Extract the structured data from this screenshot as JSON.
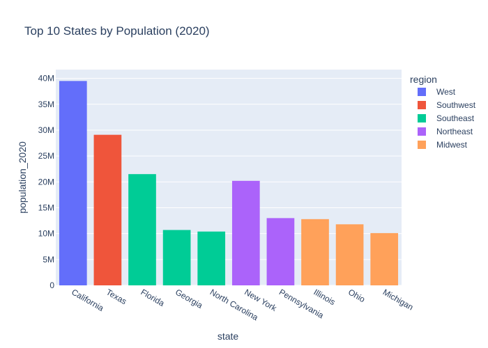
{
  "chart_data": {
    "type": "bar",
    "title": "Top 10 States by Population (2020)",
    "xlabel": "state",
    "ylabel": "population_2020",
    "ylim": [
      0,
      41700000
    ],
    "yticks": [
      0,
      5000000,
      10000000,
      15000000,
      20000000,
      25000000,
      30000000,
      35000000,
      40000000
    ],
    "ytick_labels": [
      "0",
      "5M",
      "10M",
      "15M",
      "20M",
      "25M",
      "30M",
      "35M",
      "40M"
    ],
    "grid": true,
    "legend": {
      "title": "region",
      "placement": "right"
    },
    "categories": [
      "California",
      "Texas",
      "Florida",
      "Georgia",
      "North Carolina",
      "New York",
      "Pennsylvania",
      "Illinois",
      "Ohio",
      "Michigan"
    ],
    "values": [
      39500000,
      29100000,
      21500000,
      10700000,
      10400000,
      20200000,
      13000000,
      12800000,
      11800000,
      10100000
    ],
    "regions": [
      "West",
      "Southwest",
      "Southeast",
      "Southeast",
      "Southeast",
      "Northeast",
      "Northeast",
      "Midwest",
      "Midwest",
      "Midwest"
    ],
    "series": [
      {
        "name": "West",
        "color": "#636efa"
      },
      {
        "name": "Southwest",
        "color": "#ef553b"
      },
      {
        "name": "Southeast",
        "color": "#00cc96"
      },
      {
        "name": "Northeast",
        "color": "#ab63fa"
      },
      {
        "name": "Midwest",
        "color": "#ffa15a"
      }
    ],
    "colors": {
      "plot_background": "#e5ecf6",
      "gridline": "#ffffff",
      "text": "#2a3f5f"
    }
  }
}
